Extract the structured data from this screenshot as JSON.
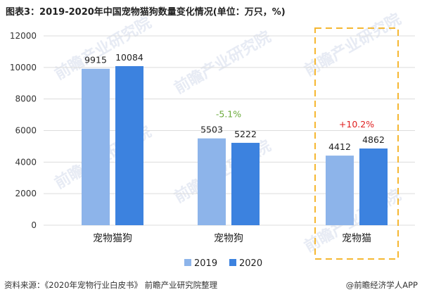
{
  "title": "图表3：2019-2020年中国宠物猫狗数量变化情况(单位：万只，%)",
  "chart_data": {
    "type": "bar",
    "categories": [
      "宠物猫狗",
      "宠物狗",
      "宠物猫"
    ],
    "series": [
      {
        "name": "2019",
        "values": [
          9915,
          5503,
          4412
        ],
        "color": "#8db4ea"
      },
      {
        "name": "2020",
        "values": [
          10084,
          5222,
          4862
        ],
        "color": "#3c82df"
      }
    ],
    "ylim": [
      0,
      12000
    ],
    "yticks": [
      0,
      2000,
      4000,
      6000,
      8000,
      10000,
      12000
    ],
    "grid": true,
    "legend_position": "bottom",
    "annotations": [
      {
        "category": "宠物狗",
        "text": "-5.1%",
        "color": "#6aaa3a"
      },
      {
        "category": "宠物猫",
        "text": "+10.2%",
        "color": "#e02020"
      }
    ],
    "highlight": {
      "category": "宠物猫",
      "style": "dashed-box",
      "color": "#f5b731"
    }
  },
  "watermark": "前瞻产业研究院",
  "source": "资料来源：《2020年宠物行业白皮书》 前瞻产业研究院整理",
  "credit": "@前瞻经济学人APP"
}
